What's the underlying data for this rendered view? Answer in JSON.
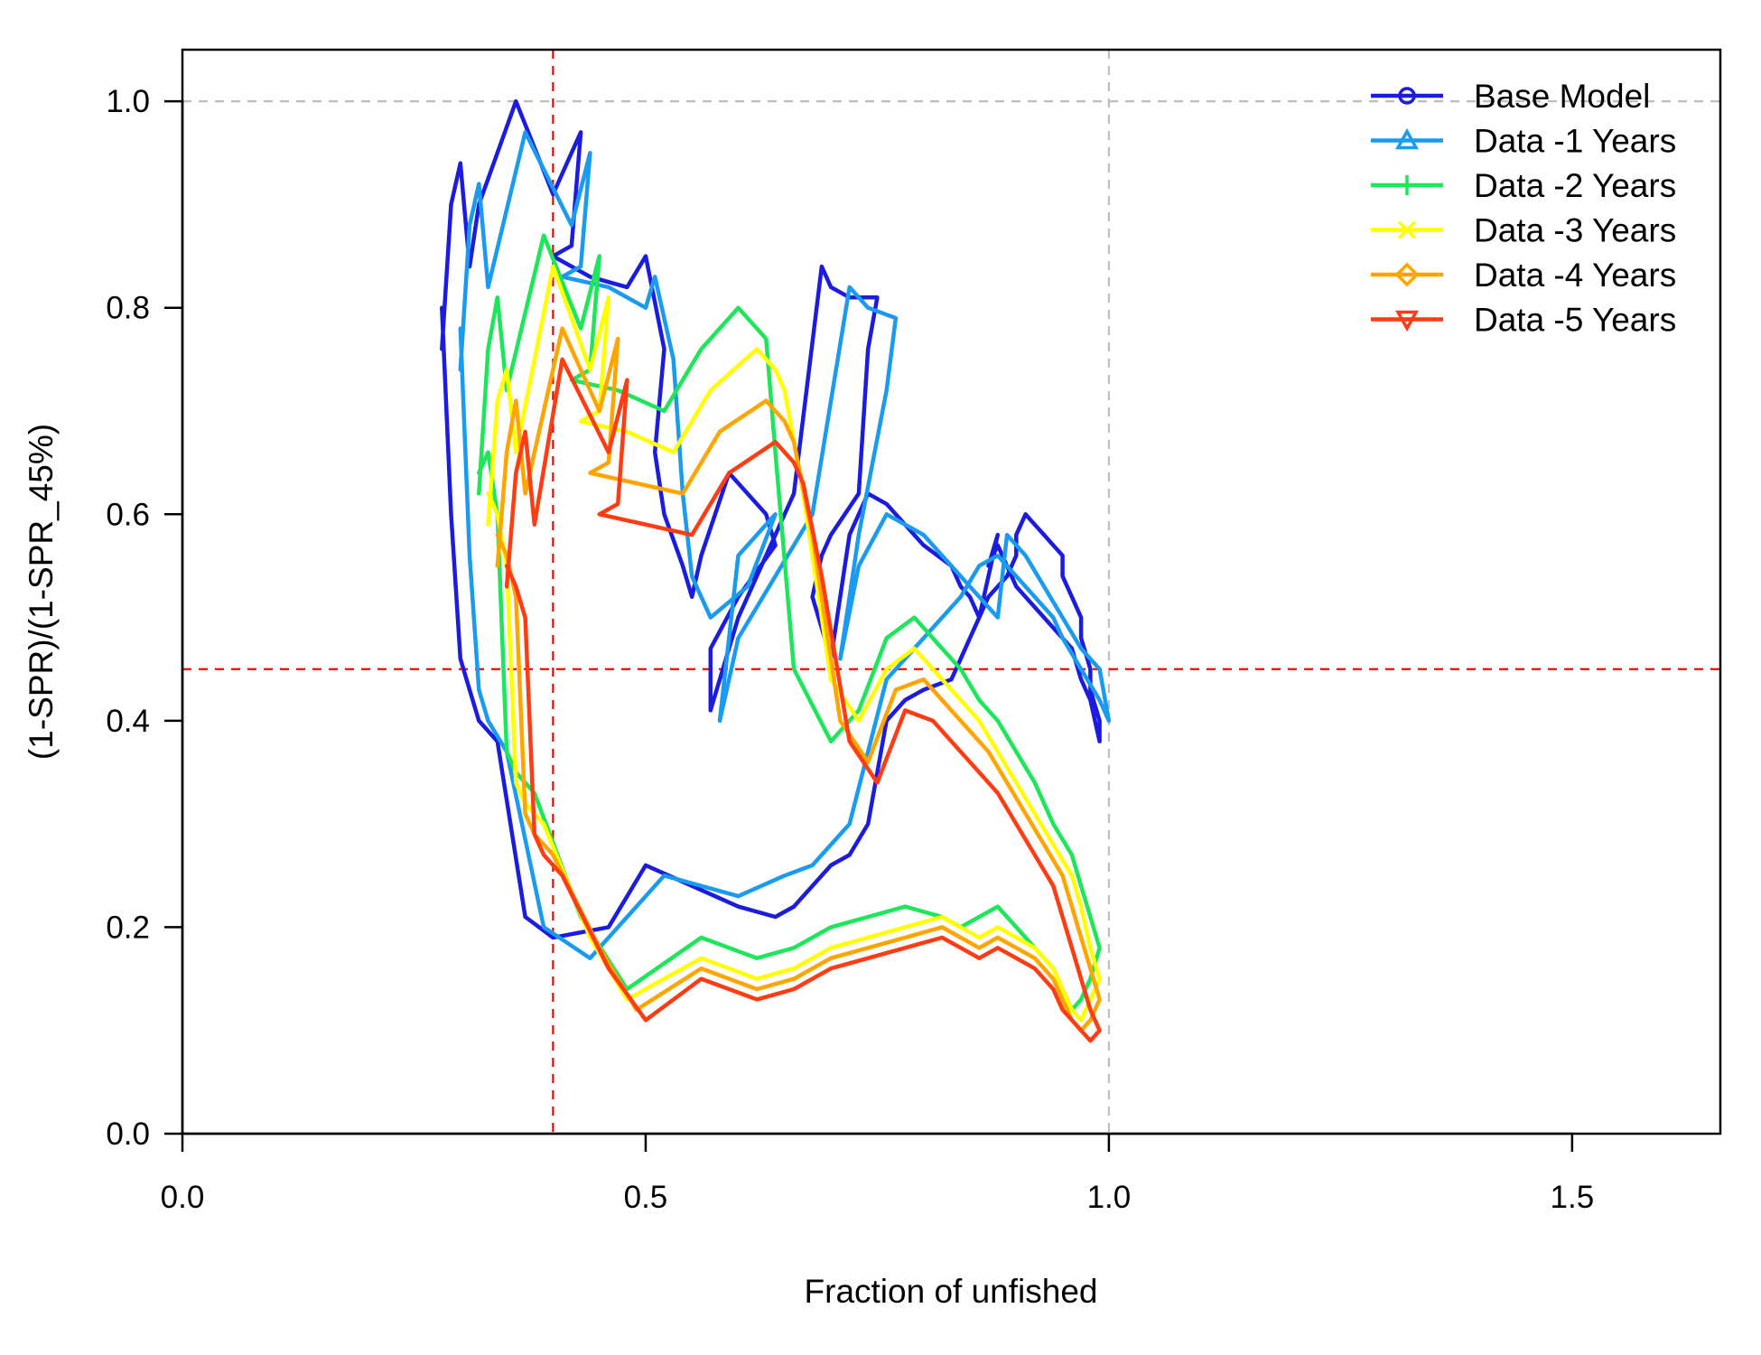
{
  "chart_data": {
    "type": "line",
    "title": "",
    "xlabel": "Fraction of unfished",
    "ylabel": "(1-SPR)/(1-SPR_45%)",
    "xlim": [
      0.0,
      1.66
    ],
    "ylim": [
      0.0,
      1.05
    ],
    "x_ticks": [
      0.0,
      0.5,
      1.0,
      1.5
    ],
    "y_ticks": [
      0.0,
      0.2,
      0.4,
      0.6,
      0.8,
      1.0
    ],
    "x_tick_labels": [
      "0.0",
      "0.5",
      "1.0",
      "1.5"
    ],
    "y_tick_labels": [
      "0.0",
      "0.2",
      "0.4",
      "0.6",
      "0.8",
      "1.0"
    ],
    "reference_lines": [
      {
        "axis": "x",
        "value": 0.4,
        "color": "#ff0000",
        "style": "dashed"
      },
      {
        "axis": "x",
        "value": 1.0,
        "color": "#bebebe",
        "style": "dashed"
      },
      {
        "axis": "y",
        "value": 0.45,
        "color": "#ff0000",
        "style": "dashed"
      },
      {
        "axis": "y",
        "value": 1.0,
        "color": "#bebebe",
        "style": "dashed"
      }
    ],
    "legend_position": "top-right",
    "series": [
      {
        "name": "Base Model",
        "color": "#1c1cdf",
        "marker": "circle",
        "x": [
          0.28,
          0.29,
          0.3,
          0.31,
          0.32,
          0.36,
          0.4,
          0.43,
          0.42,
          0.4,
          0.44,
          0.48,
          0.5,
          0.52,
          0.51,
          0.52,
          0.54,
          0.55,
          0.56,
          0.59,
          0.63,
          0.64,
          0.6,
          0.57,
          0.57,
          0.6,
          0.66,
          0.69,
          0.7,
          0.72,
          0.75,
          0.74,
          0.73,
          0.7,
          0.69,
          0.68,
          0.7,
          0.72,
          0.74,
          0.76,
          0.78,
          0.8,
          0.83,
          0.84,
          0.85,
          0.86,
          0.88,
          0.87,
          0.88,
          0.9,
          0.92,
          0.93,
          0.94,
          0.96,
          0.97,
          0.98,
          0.99,
          0.99,
          0.98,
          0.98,
          0.97,
          0.97,
          0.96,
          0.95,
          0.95,
          0.94,
          0.93,
          0.92,
          0.91,
          0.9,
          0.9,
          0.89,
          0.87,
          0.86,
          0.85,
          0.84,
          0.83,
          0.8,
          0.78,
          0.76,
          0.74,
          0.72,
          0.7,
          0.68,
          0.66,
          0.64,
          0.6,
          0.55,
          0.5,
          0.46,
          0.4,
          0.37,
          0.34,
          0.32,
          0.31,
          0.3,
          0.29,
          0.28
        ],
        "y": [
          0.76,
          0.9,
          0.94,
          0.84,
          0.9,
          1.0,
          0.91,
          0.97,
          0.86,
          0.85,
          0.83,
          0.82,
          0.85,
          0.76,
          0.66,
          0.6,
          0.55,
          0.52,
          0.56,
          0.64,
          0.6,
          0.57,
          0.52,
          0.47,
          0.41,
          0.5,
          0.62,
          0.84,
          0.82,
          0.81,
          0.81,
          0.76,
          0.62,
          0.58,
          0.56,
          0.52,
          0.46,
          0.58,
          0.62,
          0.61,
          0.59,
          0.57,
          0.55,
          0.53,
          0.52,
          0.5,
          0.58,
          0.55,
          0.57,
          0.53,
          0.51,
          0.5,
          0.49,
          0.47,
          0.44,
          0.42,
          0.38,
          0.4,
          0.43,
          0.45,
          0.48,
          0.5,
          0.52,
          0.54,
          0.56,
          0.57,
          0.58,
          0.59,
          0.6,
          0.58,
          0.56,
          0.54,
          0.52,
          0.5,
          0.48,
          0.46,
          0.44,
          0.43,
          0.42,
          0.4,
          0.3,
          0.27,
          0.26,
          0.24,
          0.22,
          0.21,
          0.22,
          0.24,
          0.26,
          0.2,
          0.19,
          0.21,
          0.38,
          0.4,
          0.43,
          0.46,
          0.6,
          0.8
        ]
      },
      {
        "name": "Data -1 Years",
        "color": "#1b9bef",
        "marker": "triangle",
        "x": [
          0.3,
          0.31,
          0.32,
          0.33,
          0.37,
          0.42,
          0.44,
          0.43,
          0.41,
          0.46,
          0.5,
          0.51,
          0.53,
          0.54,
          0.55,
          0.57,
          0.61,
          0.64,
          0.6,
          0.58,
          0.6,
          0.68,
          0.72,
          0.74,
          0.77,
          0.76,
          0.73,
          0.72,
          0.71,
          0.73,
          0.76,
          0.8,
          0.82,
          0.84,
          0.86,
          0.88,
          0.89,
          0.91,
          0.93,
          0.95,
          0.97,
          0.99,
          1.0,
          0.99,
          0.97,
          0.95,
          0.94,
          0.92,
          0.9,
          0.88,
          0.86,
          0.84,
          0.8,
          0.76,
          0.72,
          0.68,
          0.65,
          0.6,
          0.52,
          0.44,
          0.39,
          0.35,
          0.33,
          0.32,
          0.31,
          0.3
        ],
        "y": [
          0.74,
          0.88,
          0.92,
          0.82,
          0.97,
          0.88,
          0.95,
          0.84,
          0.83,
          0.82,
          0.8,
          0.83,
          0.75,
          0.62,
          0.54,
          0.5,
          0.53,
          0.6,
          0.56,
          0.4,
          0.48,
          0.6,
          0.82,
          0.8,
          0.79,
          0.72,
          0.58,
          0.52,
          0.46,
          0.55,
          0.6,
          0.58,
          0.56,
          0.54,
          0.52,
          0.5,
          0.58,
          0.56,
          0.53,
          0.5,
          0.47,
          0.45,
          0.4,
          0.42,
          0.45,
          0.48,
          0.5,
          0.52,
          0.54,
          0.56,
          0.55,
          0.52,
          0.48,
          0.44,
          0.3,
          0.26,
          0.25,
          0.23,
          0.25,
          0.17,
          0.2,
          0.37,
          0.4,
          0.43,
          0.56,
          0.78
        ]
      },
      {
        "name": "Data -2 Years",
        "color": "#1ee65a",
        "marker": "plus",
        "x": [
          0.32,
          0.33,
          0.34,
          0.35,
          0.39,
          0.43,
          0.45,
          0.44,
          0.42,
          0.47,
          0.52,
          0.56,
          0.6,
          0.62,
          0.63,
          0.64,
          0.66,
          0.7,
          0.73,
          0.76,
          0.79,
          0.82,
          0.84,
          0.86,
          0.88,
          0.9,
          0.92,
          0.94,
          0.96,
          0.97,
          0.98,
          0.99,
          0.98,
          0.97,
          0.96,
          0.95,
          0.94,
          0.92,
          0.9,
          0.88,
          0.86,
          0.84,
          0.82,
          0.78,
          0.74,
          0.7,
          0.66,
          0.62,
          0.56,
          0.48,
          0.43,
          0.38,
          0.36,
          0.35,
          0.34,
          0.33,
          0.32
        ],
        "y": [
          0.62,
          0.76,
          0.81,
          0.72,
          0.87,
          0.78,
          0.85,
          0.74,
          0.73,
          0.72,
          0.7,
          0.76,
          0.8,
          0.78,
          0.77,
          0.66,
          0.45,
          0.38,
          0.41,
          0.48,
          0.5,
          0.47,
          0.45,
          0.42,
          0.4,
          0.37,
          0.34,
          0.3,
          0.27,
          0.24,
          0.21,
          0.18,
          0.15,
          0.13,
          0.12,
          0.14,
          0.16,
          0.18,
          0.2,
          0.22,
          0.21,
          0.2,
          0.21,
          0.22,
          0.21,
          0.2,
          0.18,
          0.17,
          0.19,
          0.14,
          0.21,
          0.33,
          0.35,
          0.37,
          0.6,
          0.66,
          0.64
        ]
      },
      {
        "name": "Data -3 Years",
        "color": "#ffff00",
        "marker": "cross",
        "x": [
          0.33,
          0.34,
          0.35,
          0.36,
          0.4,
          0.44,
          0.46,
          0.45,
          0.43,
          0.48,
          0.53,
          0.57,
          0.62,
          0.64,
          0.65,
          0.67,
          0.7,
          0.73,
          0.76,
          0.79,
          0.81,
          0.84,
          0.86,
          0.88,
          0.9,
          0.92,
          0.94,
          0.96,
          0.97,
          0.98,
          0.99,
          0.98,
          0.97,
          0.96,
          0.95,
          0.94,
          0.92,
          0.9,
          0.88,
          0.86,
          0.84,
          0.82,
          0.78,
          0.74,
          0.7,
          0.66,
          0.62,
          0.56,
          0.48,
          0.44,
          0.39,
          0.37,
          0.36,
          0.35,
          0.34,
          0.33
        ],
        "y": [
          0.59,
          0.71,
          0.74,
          0.66,
          0.84,
          0.74,
          0.81,
          0.7,
          0.69,
          0.68,
          0.66,
          0.72,
          0.76,
          0.74,
          0.72,
          0.62,
          0.44,
          0.4,
          0.45,
          0.47,
          0.45,
          0.42,
          0.4,
          0.37,
          0.34,
          0.31,
          0.28,
          0.25,
          0.22,
          0.18,
          0.15,
          0.13,
          0.11,
          0.12,
          0.14,
          0.16,
          0.18,
          0.19,
          0.2,
          0.19,
          0.2,
          0.21,
          0.2,
          0.19,
          0.18,
          0.16,
          0.15,
          0.17,
          0.13,
          0.19,
          0.3,
          0.32,
          0.34,
          0.55,
          0.6,
          0.62
        ]
      },
      {
        "name": "Data -4 Years",
        "color": "#ffa500",
        "marker": "diamond",
        "x": [
          0.34,
          0.35,
          0.36,
          0.37,
          0.41,
          0.45,
          0.47,
          0.46,
          0.44,
          0.49,
          0.54,
          0.58,
          0.63,
          0.65,
          0.66,
          0.68,
          0.71,
          0.74,
          0.77,
          0.8,
          0.82,
          0.85,
          0.87,
          0.89,
          0.91,
          0.93,
          0.95,
          0.96,
          0.97,
          0.98,
          0.99,
          0.98,
          0.97,
          0.96,
          0.95,
          0.94,
          0.92,
          0.9,
          0.88,
          0.86,
          0.84,
          0.82,
          0.78,
          0.74,
          0.7,
          0.66,
          0.62,
          0.56,
          0.49,
          0.45,
          0.4,
          0.38,
          0.37,
          0.36,
          0.35,
          0.34
        ],
        "y": [
          0.55,
          0.66,
          0.71,
          0.62,
          0.78,
          0.7,
          0.77,
          0.65,
          0.64,
          0.63,
          0.62,
          0.68,
          0.71,
          0.69,
          0.67,
          0.58,
          0.4,
          0.36,
          0.43,
          0.44,
          0.42,
          0.39,
          0.37,
          0.34,
          0.31,
          0.28,
          0.25,
          0.22,
          0.19,
          0.16,
          0.13,
          0.11,
          0.1,
          0.11,
          0.13,
          0.15,
          0.17,
          0.18,
          0.19,
          0.18,
          0.19,
          0.2,
          0.19,
          0.18,
          0.17,
          0.15,
          0.14,
          0.16,
          0.12,
          0.18,
          0.27,
          0.29,
          0.31,
          0.52,
          0.56,
          0.58
        ]
      },
      {
        "name": "Data -5 Years",
        "color": "#ff3c14",
        "marker": "triangle-down",
        "x": [
          0.35,
          0.36,
          0.37,
          0.38,
          0.41,
          0.46,
          0.48,
          0.47,
          0.45,
          0.5,
          0.55,
          0.59,
          0.64,
          0.66,
          0.67,
          0.69,
          0.72,
          0.75,
          0.78,
          0.81,
          0.83,
          0.86,
          0.88,
          0.9,
          0.92,
          0.94,
          0.95,
          0.96,
          0.97,
          0.98,
          0.99,
          0.98,
          0.97,
          0.96,
          0.95,
          0.94,
          0.92,
          0.9,
          0.88,
          0.86,
          0.84,
          0.82,
          0.78,
          0.74,
          0.7,
          0.66,
          0.62,
          0.56,
          0.5,
          0.46,
          0.41,
          0.39,
          0.38,
          0.37,
          0.36,
          0.35
        ],
        "y": [
          0.53,
          0.64,
          0.68,
          0.59,
          0.75,
          0.66,
          0.73,
          0.61,
          0.6,
          0.59,
          0.58,
          0.64,
          0.67,
          0.65,
          0.63,
          0.54,
          0.38,
          0.34,
          0.41,
          0.4,
          0.38,
          0.35,
          0.33,
          0.3,
          0.27,
          0.24,
          0.21,
          0.18,
          0.15,
          0.12,
          0.1,
          0.09,
          0.1,
          0.11,
          0.12,
          0.14,
          0.16,
          0.17,
          0.18,
          0.17,
          0.18,
          0.19,
          0.18,
          0.17,
          0.16,
          0.14,
          0.13,
          0.15,
          0.11,
          0.16,
          0.25,
          0.27,
          0.29,
          0.5,
          0.53,
          0.55
        ]
      }
    ]
  }
}
